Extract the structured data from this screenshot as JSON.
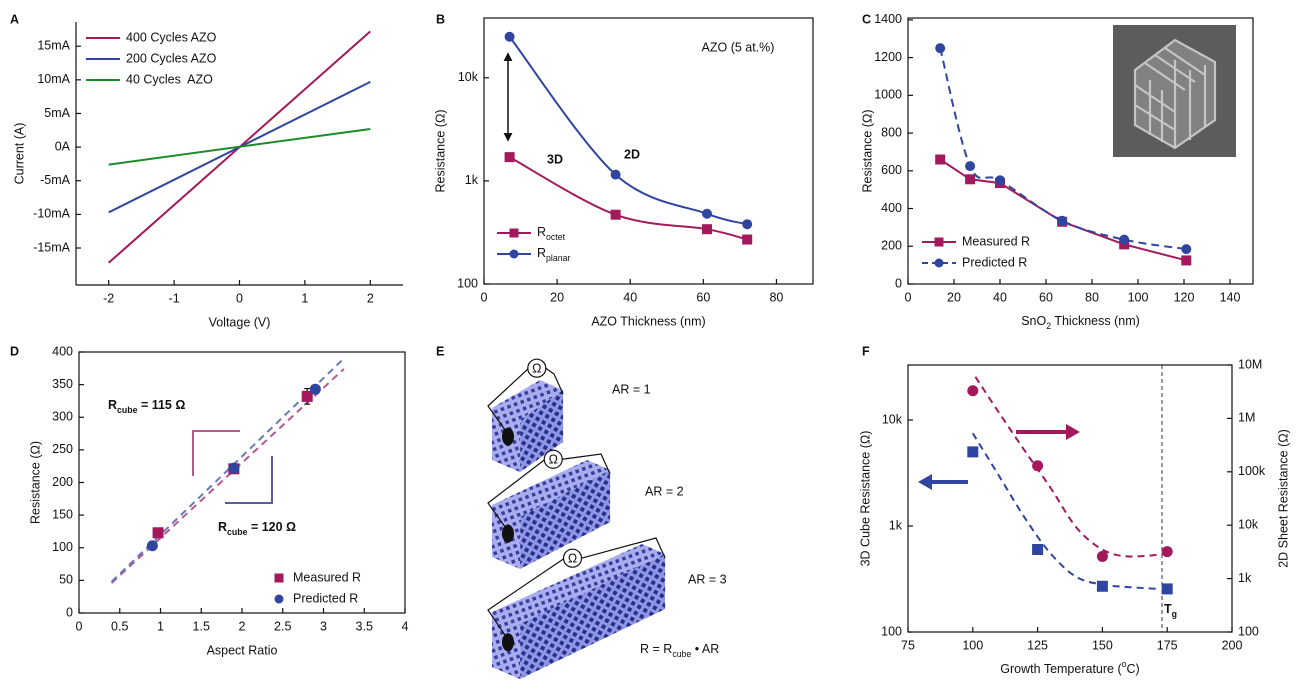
{
  "chart_data": [
    {
      "panel": "A",
      "type": "line",
      "xlabel": "Voltage (V)",
      "ylabel": "Current (A)",
      "xlim": [
        -2.5,
        2.5
      ],
      "ylim": [
        -20.5,
        18.6
      ],
      "xticks": [
        -2,
        -1,
        0,
        1,
        2
      ],
      "yticks": [
        {
          "value": -15,
          "label": "-15mA"
        },
        {
          "value": -10,
          "label": "-10mA"
        },
        {
          "value": -5,
          "label": "-5mA"
        },
        {
          "value": 0,
          "label": "0A"
        },
        {
          "value": 5,
          "label": "5mA"
        },
        {
          "value": 10,
          "label": "10mA"
        },
        {
          "value": 15,
          "label": "15mA"
        }
      ],
      "legend": "upper left",
      "series": [
        {
          "name": "400 Cycles AZO",
          "color": "#a3195b",
          "x": [
            -2,
            2
          ],
          "values": [
            -17.2,
            17.2
          ]
        },
        {
          "name": "200 Cycles AZO",
          "color": "#2f45a0",
          "x": [
            -2,
            2
          ],
          "values": [
            -9.7,
            9.7
          ]
        },
        {
          "name": "40 Cycles  AZO",
          "color": "#1f8a2a",
          "x": [
            -2,
            2
          ],
          "values": [
            -2.6,
            2.7
          ]
        }
      ]
    },
    {
      "panel": "B",
      "type": "line",
      "xlabel": "AZO Thickness (nm)",
      "ylabel": "Resistance (Ω)",
      "log_y": true,
      "xlim": [
        0,
        90
      ],
      "ylim": [
        100,
        38000
      ],
      "xticks": [
        0,
        20,
        40,
        60,
        80
      ],
      "yticks": [
        100,
        {
          "value": 1000,
          "label": "1k"
        },
        {
          "value": 10000,
          "label": "10k"
        }
      ],
      "legend": "lower left",
      "annotations": [
        "AZO (5 at.%)",
        "3D",
        "2D"
      ],
      "series": [
        {
          "name": [
            "R",
            {
              "sub": "octet"
            }
          ],
          "color": "#a3195b",
          "marker": "square",
          "smooth": true,
          "x": [
            7,
            36,
            61,
            72
          ],
          "values": [
            1700,
            470,
            340,
            270
          ]
        },
        {
          "name": [
            "R",
            {
              "sub": "planar"
            }
          ],
          "color": "#2f45a0",
          "marker": "circle",
          "smooth": true,
          "x": [
            7,
            36,
            61,
            72
          ],
          "values": [
            25000,
            1150,
            480,
            380
          ]
        }
      ]
    },
    {
      "panel": "C",
      "type": "line",
      "xlabel": [
        "SnO",
        {
          "sub": "2"
        },
        " Thickness (nm)"
      ],
      "ylabel": "Resistance (Ω)",
      "xlim": [
        0,
        150
      ],
      "ylim": [
        0,
        1410
      ],
      "xticks": [
        0,
        20,
        40,
        60,
        80,
        100,
        120,
        140
      ],
      "yticks": [
        0,
        200,
        400,
        600,
        800,
        1000,
        1200,
        1400
      ],
      "legend": "lower left",
      "series": [
        {
          "name": "Measured R",
          "color": "#a3195b",
          "marker": "square",
          "x": [
            14,
            27,
            40,
            67,
            94,
            121
          ],
          "values": [
            660,
            555,
            535,
            330,
            210,
            125
          ]
        },
        {
          "name": "Predicted R",
          "color": "#2f45a0",
          "marker": "circle",
          "dash": true,
          "smooth": true,
          "x": [
            14,
            27,
            40,
            67,
            94,
            121
          ],
          "values": [
            1250,
            625,
            550,
            335,
            235,
            185
          ]
        }
      ]
    },
    {
      "panel": "D",
      "type": "scatter",
      "xlabel": "Aspect Ratio",
      "ylabel": "Resistance (Ω)",
      "xlim": [
        0,
        4
      ],
      "ylim": [
        0,
        400
      ],
      "xticks": [
        0,
        0.5,
        1,
        1.5,
        2,
        2.5,
        3,
        3.5,
        4
      ],
      "yticks": [
        0,
        50,
        100,
        150,
        200,
        250,
        300,
        350,
        400
      ],
      "legend": "lower right",
      "annotations": [
        [
          "R",
          {
            "sub": "cube"
          },
          " = 115 Ω"
        ],
        [
          "R",
          {
            "sub": "cube"
          },
          " = 120 Ω"
        ]
      ],
      "series": [
        {
          "name": "Measured R",
          "color": "#a3195b",
          "marker": "square",
          "x": [
            0.97,
            1.9,
            2.8
          ],
          "values": [
            123,
            221,
            332
          ],
          "errors": [
            7,
            5,
            12
          ]
        },
        {
          "name": "Predicted R",
          "color": "#2f45a0",
          "marker": "circle",
          "x": [
            0.9,
            1.9,
            2.9
          ],
          "values": [
            103,
            222,
            343
          ]
        }
      ],
      "fits": [
        {
          "color": "#b45a8c",
          "x": [
            0.4,
            3.25
          ],
          "values": [
            46,
            374
          ]
        },
        {
          "color": "#6b78b8",
          "x": [
            0.4,
            3.25
          ],
          "values": [
            48,
            390
          ]
        }
      ]
    },
    {
      "panel": "F",
      "type": "scatter",
      "xlabel": [
        "Growth Temperature (",
        {
          "sup": "o"
        },
        "C)"
      ],
      "ylabel": "3D Cube Resistance (Ω)",
      "y2label": "2D Sheet Resistance (Ω)",
      "log_y": true,
      "log_y2": true,
      "xlim": [
        75,
        200
      ],
      "ylim": [
        100,
        33000
      ],
      "y2lim": [
        100,
        10000000
      ],
      "xticks": [
        75,
        100,
        125,
        150,
        175,
        200
      ],
      "yticks": [
        100,
        {
          "value": 1000,
          "label": "1k"
        },
        {
          "value": 10000,
          "label": "10k"
        }
      ],
      "y2ticks": [
        100,
        {
          "value": 1000,
          "label": "1k"
        },
        {
          "value": 10000,
          "label": "10k"
        },
        {
          "value": 100000,
          "label": "100k"
        },
        {
          "value": 1000000,
          "label": "1M"
        },
        {
          "value": 10000000,
          "label": "10M"
        }
      ],
      "series": [
        {
          "color": "#2f45a0",
          "marker": "square",
          "x": [
            100,
            125,
            150,
            175
          ],
          "values": [
            5000,
            600,
            270,
            255
          ]
        },
        {
          "color": "#a3195b",
          "marker": "circle",
          "axis": "y2",
          "x": [
            100,
            125,
            150,
            175
          ],
          "values": [
            3300000,
            130000,
            2600,
            3200
          ]
        }
      ],
      "fits": [
        {
          "color": "#2f45a0",
          "x": [
            100,
            110,
            120,
            130,
            140,
            150,
            160,
            172
          ],
          "values": [
            7500,
            3000,
            1200,
            550,
            330,
            280,
            265,
            255
          ]
        },
        {
          "color": "#a3195b",
          "axis": "y2",
          "x": [
            101,
            110,
            120,
            130,
            140,
            150,
            160,
            175
          ],
          "values": [
            6000000,
            1300000,
            250000,
            50000,
            9000,
            3500,
            2600,
            2900
          ]
        }
      ],
      "vline": {
        "x": 173,
        "label": [
          "T",
          {
            "sub": "g"
          }
        ]
      }
    }
  ],
  "panel_e": {
    "panel": "E",
    "meter": "Ω",
    "labels": [
      "AR = 1",
      "AR = 2",
      "AR = 3"
    ],
    "equation": [
      "R = R",
      {
        "sub": "cube"
      },
      " • AR"
    ]
  }
}
